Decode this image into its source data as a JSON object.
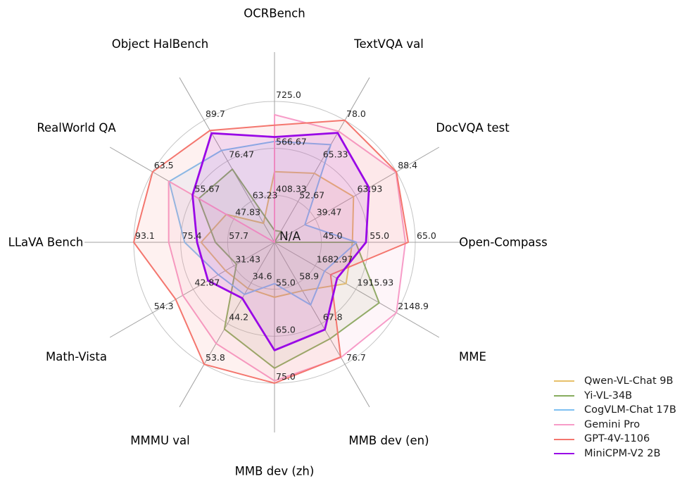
{
  "chart_data": {
    "type": "radar",
    "title": "",
    "center_label": "N/A",
    "grid": {
      "rings": 3,
      "ring_color": "#c4c4c4",
      "spoke_color": "#a0a0a0",
      "gridlines_on": true
    },
    "fill_opacity": 0.1,
    "legend_position": "lower right",
    "axes": [
      {
        "label": "OCRBench",
        "min": 250,
        "max": 725,
        "ticks": [
          "408.33",
          "566.67",
          "725.0"
        ]
      },
      {
        "label": "TextVQA val",
        "min": 40,
        "max": 78,
        "ticks": [
          "52.67",
          "65.33",
          "78.0"
        ]
      },
      {
        "label": "DocVQA test",
        "min": 15,
        "max": 88.4,
        "ticks": [
          "39.47",
          "63.93",
          "88.4"
        ]
      },
      {
        "label": "Open-Compass",
        "min": 35,
        "max": 65,
        "ticks": [
          "45.0",
          "55.0",
          "65.0"
        ]
      },
      {
        "label": "MME",
        "min": 1450,
        "max": 2148.9,
        "ticks": [
          "1682.97",
          "1915.93",
          "2148.9"
        ]
      },
      {
        "label": "MMB dev (en)",
        "min": 50,
        "max": 76.7,
        "ticks": [
          "58.9",
          "67.8",
          "76.7"
        ]
      },
      {
        "label": "MMB dev (zh)",
        "min": 45,
        "max": 75,
        "ticks": [
          "55.0",
          "65.0",
          "75.0"
        ]
      },
      {
        "label": "MMMU val",
        "min": 25,
        "max": 53.8,
        "ticks": [
          "34.6",
          "44.2",
          "53.8"
        ]
      },
      {
        "label": "Math-Vista",
        "min": 20,
        "max": 54.3,
        "ticks": [
          "31.43",
          "42.87",
          "54.3"
        ]
      },
      {
        "label": "LLaVA Bench",
        "min": 40,
        "max": 93.1,
        "ticks": [
          "57.7",
          "75.4",
          "93.1"
        ]
      },
      {
        "label": "RealWorld QA",
        "min": 40,
        "max": 63.5,
        "ticks": [
          "47.83",
          "55.67",
          "63.5"
        ]
      },
      {
        "label": "Object HalBench",
        "min": 50,
        "max": 89.7,
        "ticks": [
          "63.23",
          "76.47",
          "89.7"
        ]
      }
    ],
    "series": [
      {
        "name": "Qwen-VL-Chat 9B",
        "color": "#e7c06a",
        "line_width": 2,
        "values": [
          488,
          61.5,
          62.6,
          51.6,
          1860.0,
          60.6,
          56.7,
          35.9,
          33.8,
          67.7,
          49.3,
          56.2
        ]
      },
      {
        "name": "Yi-VL-34B",
        "color": "#87ad5e",
        "line_width": 2,
        "values": [
          290,
          43.4,
          null,
          52.3,
          2050.2,
          71.1,
          71.8,
          45.5,
          30.7,
          62.3,
          54.6,
          73.8
        ]
      },
      {
        "name": "CogVLM-Chat 17B",
        "color": "#7fc0f2",
        "line_width": 2,
        "values": [
          590,
          70.4,
          33.3,
          52.5,
          1736.6,
          63.7,
          53.8,
          37.3,
          35.8,
          73.9,
          60.3,
          79.9
        ]
      },
      {
        "name": "Gemini Pro",
        "color": "#f79cc8",
        "line_width": 2,
        "values": [
          680,
          74.6,
          88.1,
          62.9,
          2148.9,
          75.2,
          74.5,
          48.9,
          45.8,
          79.9,
          60.4,
          null
        ]
      },
      {
        "name": "GPT-4V-1106",
        "color": "#f4766e",
        "line_width": 2,
        "values": [
          645,
          78.0,
          88.4,
          63.5,
          1771.5,
          75.1,
          75.0,
          53.8,
          47.8,
          93.1,
          63.5,
          86.4
        ]
      },
      {
        "name": "MiniCPM-V2 2B",
        "color": "#9907e6",
        "line_width": 2.8,
        "values": [
          605,
          74.1,
          71.9,
          54.5,
          1808.6,
          69.1,
          68.0,
          38.2,
          38.7,
          69.2,
          55.8,
          85.5
        ]
      }
    ]
  }
}
